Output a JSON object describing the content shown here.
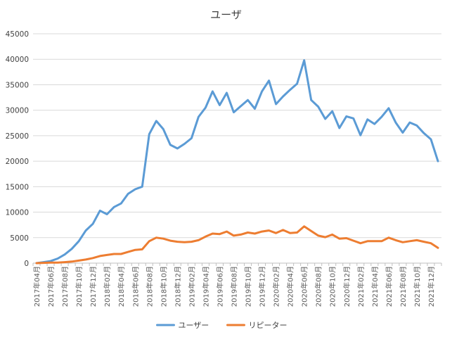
{
  "chart_data": {
    "type": "line",
    "title": "ユーザ",
    "xlabel": "",
    "ylabel": "",
    "ylim": [
      0,
      45000
    ],
    "yticks": [
      "0",
      "5000",
      "10000",
      "15000",
      "20000",
      "25000",
      "30000",
      "35000",
      "40000",
      "45000"
    ],
    "grid": true,
    "legend_position": "bottom",
    "x": [
      "2017年04月",
      "2017年05月",
      "2017年06月",
      "2017年07月",
      "2017年08月",
      "2017年09月",
      "2017年10月",
      "2017年11月",
      "2017年12月",
      "2018年01月",
      "2018年02月",
      "2018年03月",
      "2018年04月",
      "2018年05月",
      "2018年06月",
      "2018年07月",
      "2018年08月",
      "2018年09月",
      "2018年10月",
      "2018年11月",
      "2018年12月",
      "2019年01月",
      "2019年02月",
      "2019年03月",
      "2019年04月",
      "2019年05月",
      "2019年06月",
      "2019年07月",
      "2019年08月",
      "2019年09月",
      "2019年10月",
      "2019年11月",
      "2019年12月",
      "2020年01月",
      "2020年02月",
      "2020年03月",
      "2020年04月",
      "2020年05月",
      "2020年06月",
      "2020年07月",
      "2020年08月",
      "2020年09月",
      "2020年10月",
      "2020年11月",
      "2020年12月",
      "2021年01月",
      "2021年02月",
      "2021年03月",
      "2021年04月",
      "2021年05月",
      "2021年06月",
      "2021年07月",
      "2021年08月",
      "2021年09月",
      "2021年10月",
      "2021年11月",
      "2021年12月",
      "2022年01月"
    ],
    "xtick_labels": [
      "2017年04月",
      "2017年06月",
      "2017年08月",
      "2017年10月",
      "2017年12月",
      "2018年02月",
      "2018年04月",
      "2018年06月",
      "2018年08月",
      "2018年10月",
      "2018年12月",
      "2019年02月",
      "2019年04月",
      "2019年06月",
      "2019年08月",
      "2019年10月",
      "2019年12月",
      "2020年02月",
      "2020年04月",
      "2020年06月",
      "2020年08月",
      "2020年10月",
      "2020年12月",
      "2021年02月",
      "2021年04月",
      "2021年06月",
      "2021年08月",
      "2021年10月",
      "2021年12月"
    ],
    "series": [
      {
        "name": "ユーザー",
        "color": "#5b9bd5",
        "values": [
          0,
          200,
          400,
          900,
          1700,
          2800,
          4300,
          6400,
          7700,
          10300,
          9600,
          11000,
          11700,
          13600,
          14500,
          15000,
          25300,
          27900,
          26300,
          23200,
          22500,
          23400,
          24500,
          28700,
          30500,
          33700,
          31000,
          33400,
          29600,
          30800,
          32000,
          30300,
          33700,
          35800,
          31200,
          32700,
          34000,
          35200,
          39800,
          32000,
          30700,
          28300,
          29800,
          26500,
          28800,
          28400,
          25100,
          28200,
          27300,
          28700,
          30400,
          27600,
          25600,
          27600,
          27000,
          25500,
          24300,
          20000
        ]
      },
      {
        "name": "リピーター",
        "color": "#ed7d31",
        "values": [
          0,
          50,
          100,
          100,
          200,
          300,
          500,
          700,
          1000,
          1400,
          1600,
          1800,
          1800,
          2200,
          2600,
          2700,
          4300,
          5000,
          4800,
          4400,
          4200,
          4100,
          4200,
          4500,
          5200,
          5800,
          5700,
          6200,
          5400,
          5600,
          6000,
          5800,
          6200,
          6400,
          5900,
          6500,
          5900,
          6000,
          7200,
          6300,
          5400,
          5100,
          5600,
          4800,
          4900,
          4400,
          3900,
          4300,
          4300,
          4300,
          5000,
          4500,
          4100,
          4300,
          4500,
          4200,
          3900,
          3000
        ]
      }
    ]
  }
}
